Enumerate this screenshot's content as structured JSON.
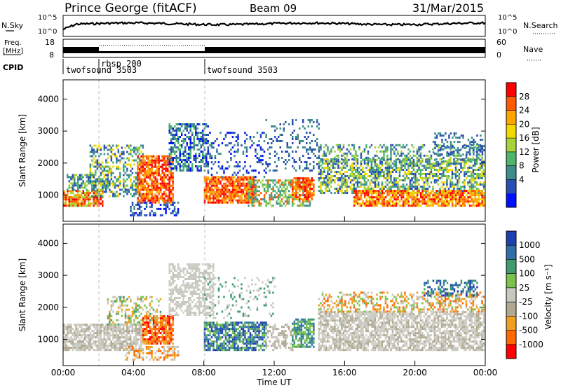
{
  "header": {
    "station": "Prince George (fitACF)",
    "beam": "Beam 09",
    "date": "31/Mar/2015"
  },
  "strip_labels": {
    "nsky": "N.Sky",
    "nsearch": "N.Search",
    "freq_line1": "Freq.",
    "freq_line2": "[MHz]",
    "nave": "Nave",
    "cpid": "CPID"
  },
  "noise_ticks": {
    "top": "10^5",
    "bottom": "10^0"
  },
  "freq_ticks": {
    "left_top": "18",
    "left_bottom": "8",
    "right_top": "60",
    "right_bottom": "0"
  },
  "cpid_segments": [
    {
      "name": "twofsound 3503",
      "start_hour": 0.0
    },
    {
      "name": "rbsp 200",
      "start_hour": 2.0
    },
    {
      "name": "twofsound 3503",
      "start_hour": 8.0
    }
  ],
  "chart_data": [
    {
      "type": "heatmap",
      "panel": "power",
      "ylabel": "Slant Range [km]",
      "xlim_hours": [
        0,
        24
      ],
      "ylim": [
        180,
        4600
      ],
      "yticks": [
        "1000",
        "2000",
        "3000",
        "4000"
      ],
      "colorbar_label": "Power [dB]",
      "colorbar_ticks": [
        "28",
        "24",
        "20",
        "16",
        "12",
        "8",
        "4"
      ],
      "colors_high_to_low": [
        "#ff0000",
        "#ff5a00",
        "#ffa500",
        "#f5d800",
        "#a8d238",
        "#4fb56b",
        "#3e8c8c",
        "#2a4fb4",
        "#0010ff"
      ]
    },
    {
      "type": "heatmap",
      "panel": "velocity",
      "ylabel": "Slant Range [km]",
      "xlim_hours": [
        0,
        24
      ],
      "ylim": [
        180,
        4600
      ],
      "yticks": [
        "1000",
        "2000",
        "3000",
        "4000"
      ],
      "colorbar_label": "Velocity [m s⁻¹]",
      "colorbar_ticks": [
        "1000",
        "500",
        "100",
        "25",
        "-25",
        "-100",
        "-500",
        "-1000"
      ],
      "colors_high_to_low": [
        "#1e3fb0",
        "#2f6fa8",
        "#3f9a6f",
        "#7cc24a",
        "#c8c8c0",
        "#b0a890",
        "#f0a020",
        "#ff6a00",
        "#ff0000"
      ]
    }
  ],
  "xaxis": {
    "label": "Time UT",
    "ticks": [
      "00:00",
      "04:00",
      "08:00",
      "12:00",
      "16:00",
      "20:00",
      "00:00"
    ]
  }
}
